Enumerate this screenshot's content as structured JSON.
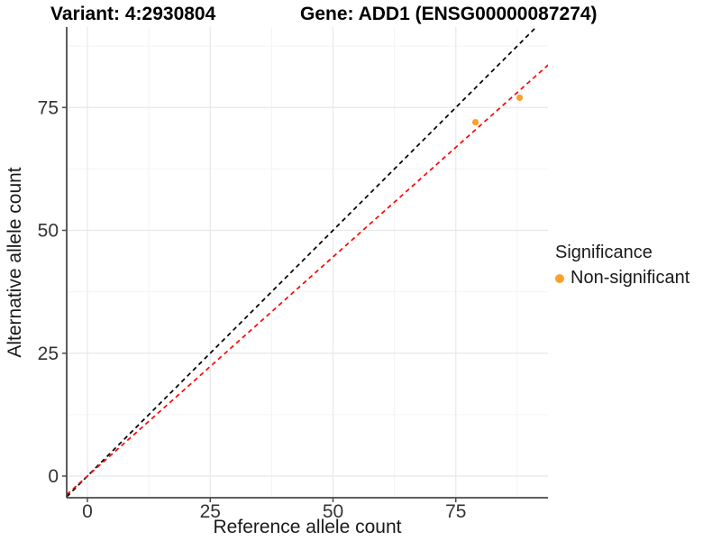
{
  "chart_data": {
    "type": "scatter",
    "title_left": "Variant: 4:2930804",
    "title_right": "Gene: ADD1 (ENSG00000087274)",
    "xlabel": "Reference allele count",
    "ylabel": "Alternative allele count",
    "x_ticks": [
      0,
      25,
      50,
      75
    ],
    "y_ticks": [
      0,
      25,
      50,
      75
    ],
    "x_minor_ticks": [
      12.5,
      37.5,
      62.5,
      87.5
    ],
    "y_minor_ticks": [
      12.5,
      37.5,
      62.5,
      87.5
    ],
    "xlim": [
      -4.2,
      93.8
    ],
    "ylim": [
      -4.4,
      91.4
    ],
    "grid": "on",
    "series": [
      {
        "name": "Non-significant",
        "color": "#F9A12B",
        "points": [
          {
            "x": 79,
            "y": 72
          },
          {
            "x": 88,
            "y": 77
          }
        ]
      }
    ],
    "reference_lines": [
      {
        "name": "identity-line",
        "slope": 1,
        "intercept": 0,
        "color": "#000000",
        "style": "dashed"
      },
      {
        "name": "allelic-ratio-line",
        "slope": 0.892,
        "intercept": 0,
        "color": "#FF0000",
        "style": "dashed"
      }
    ],
    "legend": {
      "title": "Significance",
      "position": "right",
      "entries": [
        {
          "label": "Non-significant",
          "color": "#F9A12B"
        }
      ]
    },
    "style_colors": {
      "axis_line": "#4a4a4a",
      "tick_label": "#333333",
      "grid_major": "#e8e8e8",
      "grid_minor": "#f3f3f3"
    }
  }
}
